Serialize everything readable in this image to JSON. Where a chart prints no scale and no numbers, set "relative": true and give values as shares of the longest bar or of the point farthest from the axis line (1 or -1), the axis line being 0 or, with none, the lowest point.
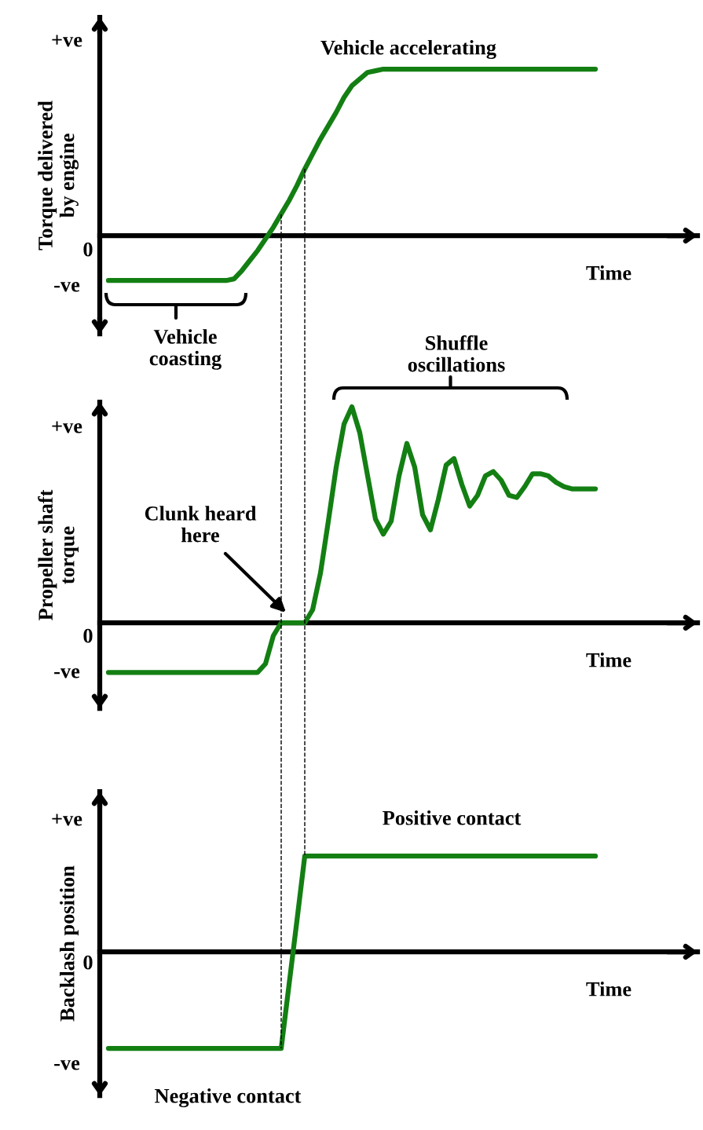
{
  "chart_data": [
    {
      "type": "line",
      "relative": true,
      "ylabel": "Torque delivered\nby engine",
      "xlabel": "Time",
      "categories": [
        null,
        null,
        null,
        null,
        null,
        null,
        null,
        null,
        null,
        null,
        null,
        null,
        null,
        null,
        null,
        null,
        null,
        null,
        null,
        null,
        null,
        null,
        null,
        null,
        null,
        null,
        null,
        null,
        null,
        null,
        null,
        null,
        null,
        null,
        null,
        null,
        null,
        null,
        null,
        null,
        null,
        null,
        null,
        null,
        null,
        null,
        null,
        null,
        null,
        null,
        null,
        null,
        null,
        null,
        null,
        null,
        null,
        null,
        null,
        null,
        null,
        null,
        null
      ],
      "series": [
        {
          "color": "#137f13",
          "values": [
            -0.27,
            -0.27,
            -0.27,
            -0.27,
            -0.27,
            -0.27,
            -0.27,
            -0.27,
            -0.27,
            -0.27,
            -0.27,
            -0.27,
            -0.27,
            -0.27,
            -0.27,
            -0.27,
            -0.26,
            -0.21,
            -0.15,
            -0.09,
            -0.02,
            0.05,
            0.13,
            0.21,
            0.3,
            0.4,
            0.49,
            0.58,
            0.66,
            0.74,
            0.83,
            0.9,
            0.94,
            0.98,
            0.99,
            1,
            1,
            1,
            1,
            1,
            1,
            1,
            1,
            1,
            1,
            1,
            1,
            1,
            1,
            1,
            1,
            1,
            1,
            1,
            1,
            1,
            1,
            1,
            1,
            1,
            1,
            1,
            1
          ]
        }
      ],
      "annotations": [
        "+ve",
        "0",
        "-ve",
        "Vehicle accelerating",
        "Vehicle\ncoasting"
      ]
    },
    {
      "type": "line",
      "relative": true,
      "ylabel": "Propeller shaft\ntorque",
      "xlabel": "Time",
      "categories": [
        null,
        null,
        null,
        null,
        null,
        null,
        null,
        null,
        null,
        null,
        null,
        null,
        null,
        null,
        null,
        null,
        null,
        null,
        null,
        null,
        null,
        null,
        null,
        null,
        null,
        null,
        null,
        null,
        null,
        null,
        null,
        null,
        null,
        null,
        null,
        null,
        null,
        null,
        null,
        null,
        null,
        null,
        null,
        null,
        null,
        null,
        null,
        null,
        null,
        null,
        null,
        null,
        null,
        null,
        null,
        null,
        null,
        null,
        null,
        null,
        null,
        null,
        null
      ],
      "series": [
        {
          "color": "#137f13",
          "values": [
            -0.23,
            -0.23,
            -0.23,
            -0.23,
            -0.23,
            -0.23,
            -0.23,
            -0.23,
            -0.23,
            -0.23,
            -0.23,
            -0.23,
            -0.23,
            -0.23,
            -0.23,
            -0.23,
            -0.23,
            -0.23,
            -0.23,
            -0.23,
            -0.19,
            -0.06,
            0,
            0,
            0,
            0,
            0.06,
            0.23,
            0.47,
            0.72,
            0.92,
            1,
            0.88,
            0.68,
            0.48,
            0.41,
            0.47,
            0.68,
            0.83,
            0.72,
            0.5,
            0.43,
            0.57,
            0.73,
            0.76,
            0.64,
            0.54,
            0.59,
            0.68,
            0.7,
            0.66,
            0.59,
            0.58,
            0.63,
            0.69,
            0.69,
            0.68,
            0.65,
            0.63,
            0.62,
            0.62,
            0.62,
            0.62
          ]
        }
      ],
      "annotations": [
        "+ve",
        "0",
        "-ve",
        "Shuffle\noscillations",
        "Clunk heard\nhere"
      ]
    },
    {
      "type": "line",
      "relative": true,
      "ylabel": "Backlash position",
      "xlabel": "Time",
      "categories": [
        null,
        null,
        null,
        null,
        null,
        null,
        null,
        null,
        null,
        null,
        null,
        null,
        null,
        null,
        null,
        null,
        null,
        null,
        null,
        null,
        null,
        null,
        null,
        null,
        null,
        null,
        null,
        null,
        null,
        null,
        null,
        null,
        null,
        null,
        null,
        null,
        null,
        null,
        null,
        null,
        null,
        null,
        null,
        null,
        null,
        null,
        null,
        null,
        null,
        null,
        null,
        null,
        null,
        null,
        null,
        null,
        null,
        null,
        null,
        null,
        null,
        null,
        null
      ],
      "series": [
        {
          "color": "#137f13",
          "values": [
            -1,
            -1,
            -1,
            -1,
            -1,
            -1,
            -1,
            -1,
            -1,
            -1,
            -1,
            -1,
            -1,
            -1,
            -1,
            -1,
            -1,
            -1,
            -1,
            -1,
            -1,
            -1,
            -1,
            -0.34,
            0.32,
            0.99,
            0.99,
            0.99,
            0.99,
            0.99,
            0.99,
            0.99,
            0.99,
            0.99,
            0.99,
            0.99,
            0.99,
            0.99,
            0.99,
            0.99,
            0.99,
            0.99,
            0.99,
            0.99,
            0.99,
            0.99,
            0.99,
            0.99,
            0.99,
            0.99,
            0.99,
            0.99,
            0.99,
            0.99,
            0.99,
            0.99,
            0.99,
            0.99,
            0.99,
            0.99,
            0.99,
            0.99,
            0.99
          ]
        }
      ],
      "annotations": [
        "+ve",
        "0",
        "-ve",
        "Positive contact",
        "Negative contact"
      ]
    }
  ]
}
